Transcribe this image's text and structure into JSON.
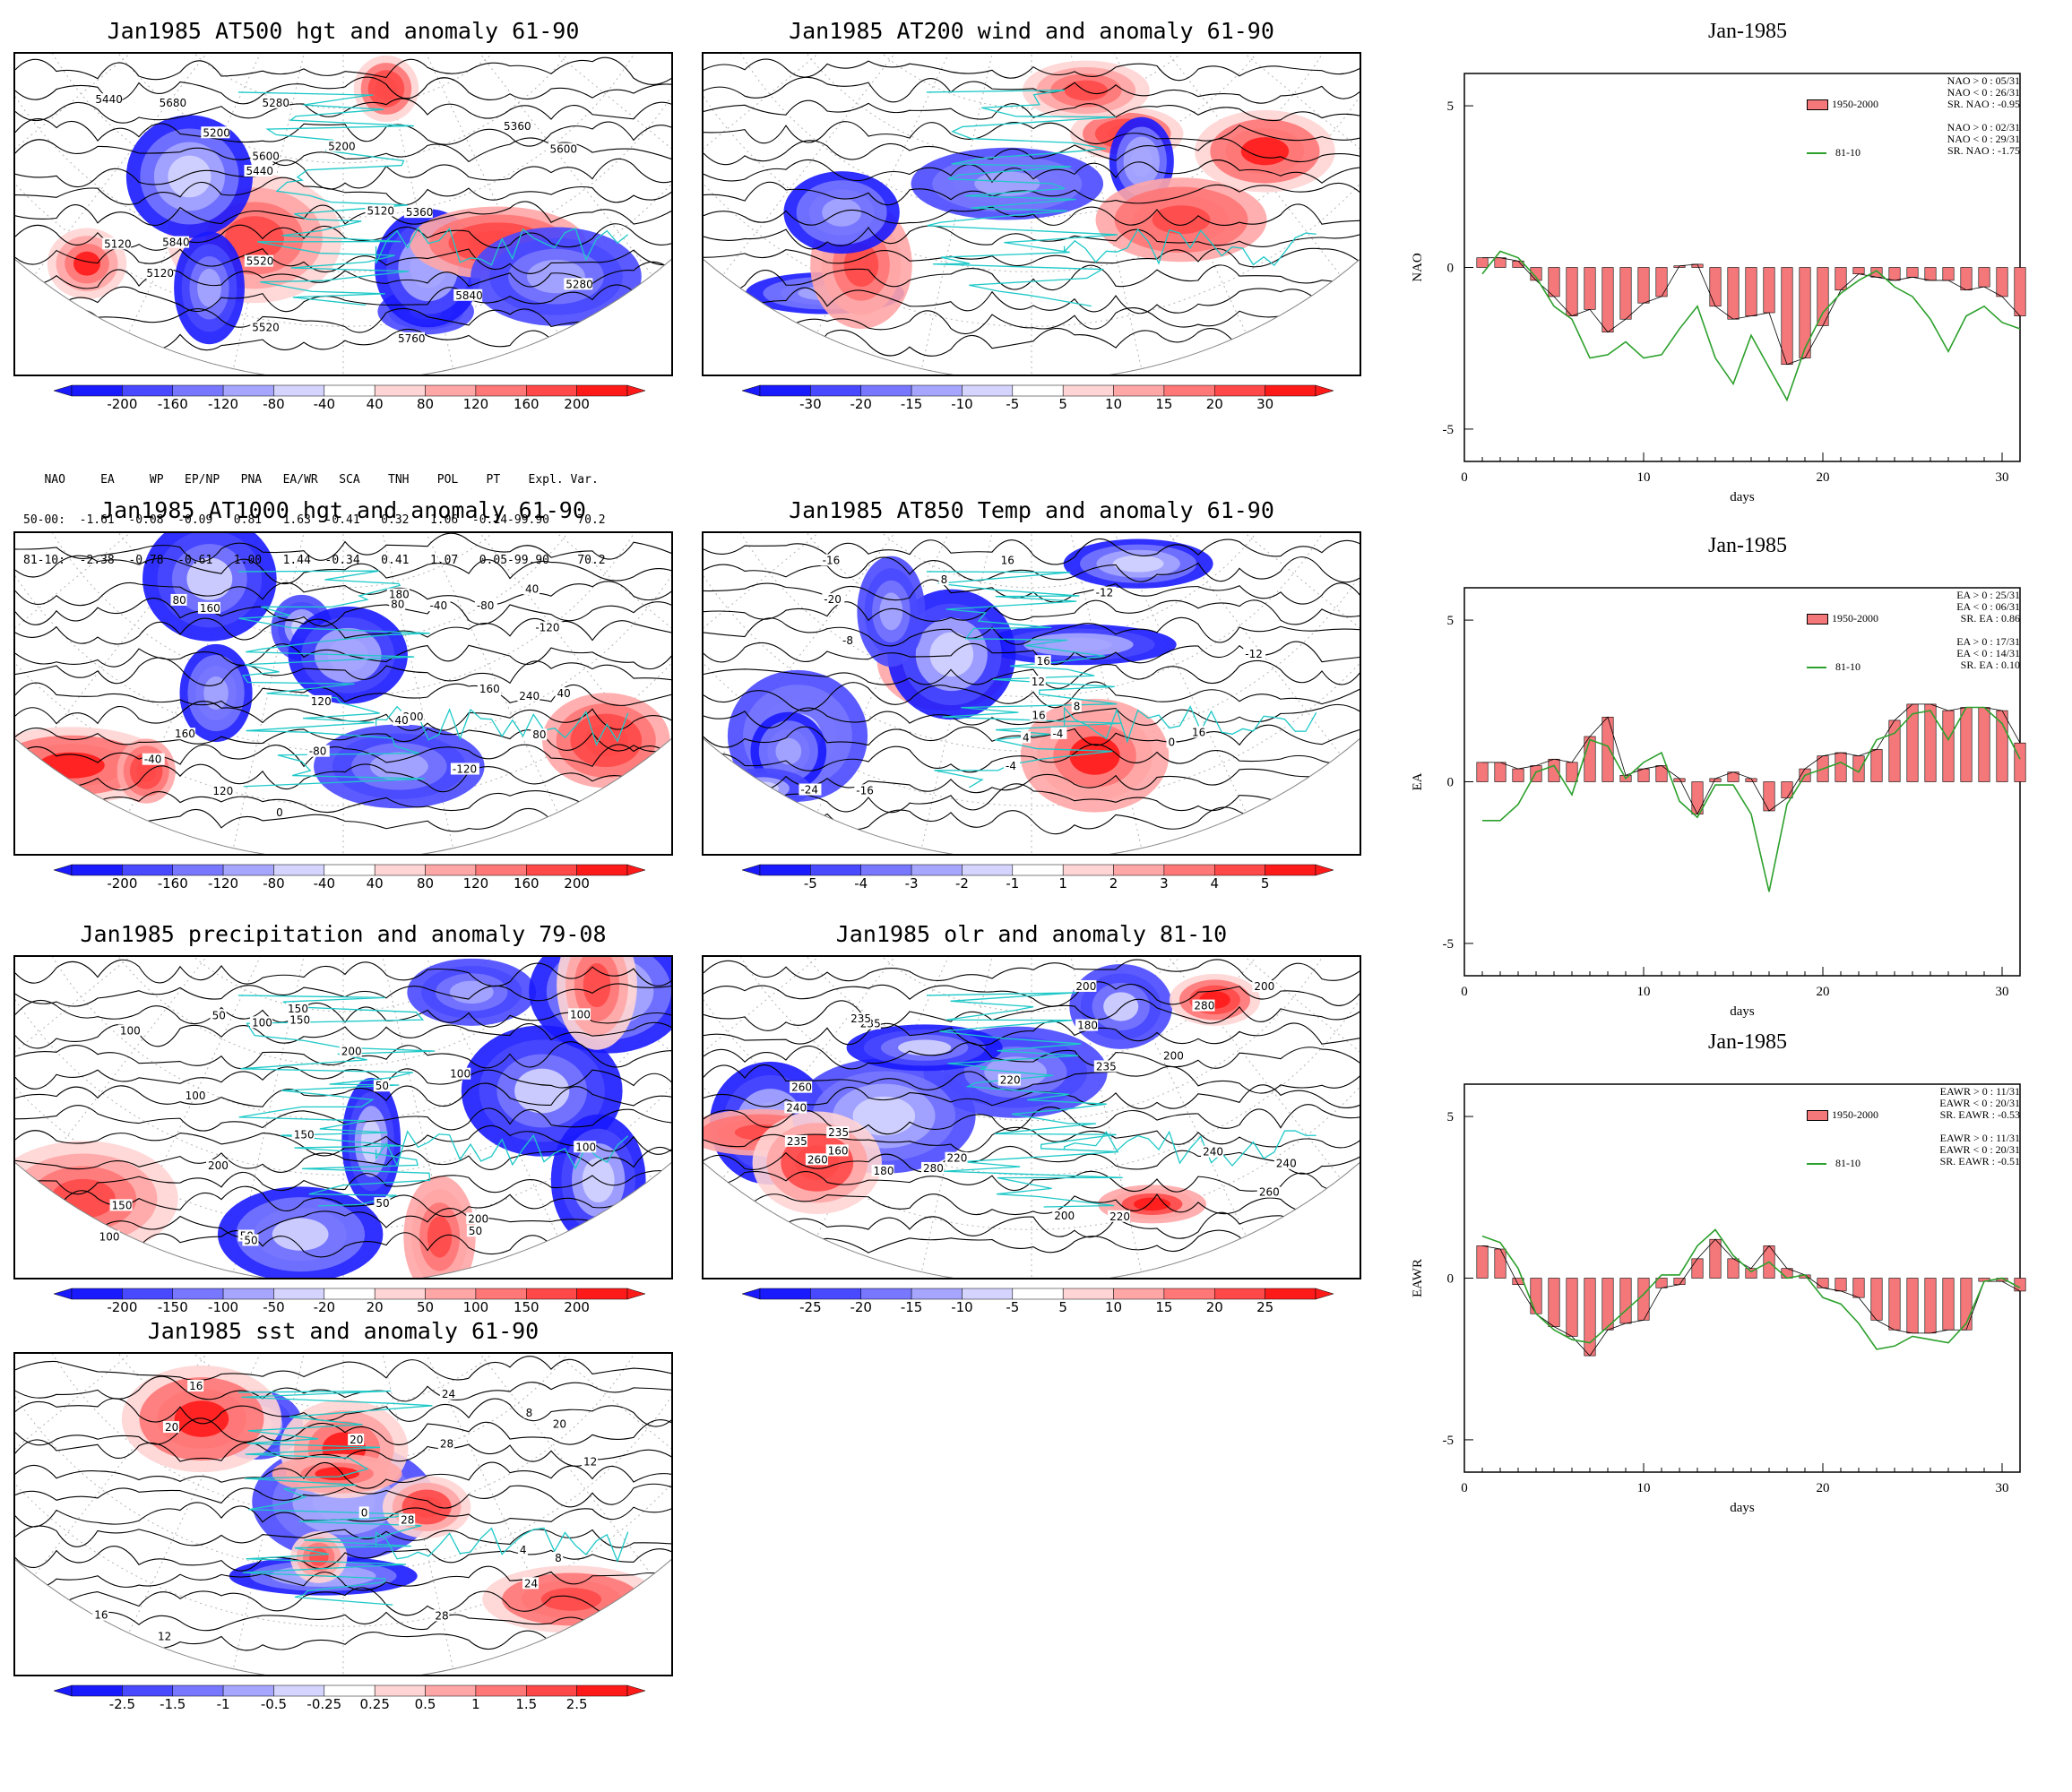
{
  "maps": [
    {
      "id": "z500",
      "title": "Jan1985 AT500 hgt and anomaly 61-90",
      "scale": [
        "-200",
        "-160",
        "-120",
        "-80",
        "-40",
        "40",
        "80",
        "120",
        "160",
        "200"
      ]
    },
    {
      "id": "u200",
      "title": "Jan1985 AT200 wind and anomaly 61-90",
      "scale": [
        "-30",
        "-20",
        "-15",
        "-10",
        "-5",
        "5",
        "10",
        "15",
        "20",
        "30"
      ]
    },
    {
      "id": "z1000",
      "title": "Jan1985 AT1000 hgt and anomaly 61-90",
      "scale": [
        "-200",
        "-160",
        "-120",
        "-80",
        "-40",
        "40",
        "80",
        "120",
        "160",
        "200"
      ]
    },
    {
      "id": "t850",
      "title": "Jan1985 AT850 Temp and anomaly 61-90",
      "scale": [
        "-5",
        "-4",
        "-3",
        "-2",
        "-1",
        "1",
        "2",
        "3",
        "4",
        "5"
      ]
    },
    {
      "id": "prcp",
      "title": "Jan1985 precipitation and anomaly 79-08",
      "scale": [
        "-200",
        "-150",
        "-100",
        "-50",
        "-20",
        "20",
        "50",
        "100",
        "150",
        "200"
      ]
    },
    {
      "id": "olr",
      "title": "Jan1985 olr and anomaly 81-10",
      "scale": [
        "-25",
        "-20",
        "-15",
        "-10",
        "-5",
        "5",
        "10",
        "15",
        "20",
        "25"
      ]
    },
    {
      "id": "sst",
      "title": "Jan1985 sst and anomaly 61-90",
      "scale": [
        "-2.5",
        "-1.5",
        "-1",
        "-0.5",
        "-0.25",
        "0.25",
        "0.5",
        "1",
        "1.5",
        "2.5"
      ]
    }
  ],
  "indices_table": {
    "header": "   NAO     EA     WP   EP/NP   PNA   EA/WR   SCA    TNH    POL    PT    Expl. Var.",
    "row1": "50-00:  -1.61  -0.08  -0.09   0.81   1.63  -0.41   0.32   1.06  -0.14-99.90    70.2",
    "row2": "81-10:  -2.38  -0.78  -0.61   1.00   1.44  -0.34   0.41   1.07   0.05-99.90    70.2"
  },
  "contour_labels": {
    "z500": [
      "5120",
      "5200",
      "5280",
      "5120",
      "5280",
      "5200",
      "5360",
      "5440",
      "5520",
      "5600",
      "5120",
      "5360",
      "5440",
      "5520",
      "5600",
      "5680",
      "5760",
      "5840",
      "5840"
    ],
    "z1000": [
      "-120",
      "-80",
      "-40",
      "0",
      "40",
      "160",
      "80",
      "200",
      "240",
      "40",
      "0",
      "40",
      "80",
      "120",
      "160",
      "180",
      "160",
      "-120",
      "120",
      "80",
      "-40",
      "-80"
    ],
    "t850": [
      "8",
      "-4",
      "-24",
      "-16",
      "-12",
      "-20",
      "-16",
      "-12",
      "-8",
      "-4",
      "0",
      "4",
      "8",
      "12",
      "16",
      "16",
      "16",
      "16"
    ],
    "prcp": [
      "200",
      "100",
      "150",
      "200",
      "150",
      "100",
      "50",
      "50",
      "150",
      "50",
      "100",
      "150",
      "100",
      "50",
      "200",
      "100",
      "100",
      "50",
      "50",
      "100"
    ],
    "olr": [
      "180",
      "160",
      "200",
      "240",
      "235",
      "280",
      "260",
      "200",
      "220",
      "235",
      "180",
      "200",
      "220",
      "235",
      "260",
      "280",
      "240",
      "235",
      "240",
      "235",
      "220",
      "200",
      "260"
    ],
    "sst": [
      "28",
      "8",
      "12",
      "16",
      "20",
      "24",
      "0",
      "4",
      "8",
      "12",
      "16",
      "20",
      "24",
      "28",
      "28",
      "20"
    ]
  },
  "timeseries_panels": [
    {
      "title": "Jan-1985",
      "ylabel": "NAO",
      "xlabel": "days",
      "legend_bar": "1950-2000",
      "legend_line": "81-10",
      "stats_bar": [
        "NAO > 0 : 05/31",
        "NAO < 0 : 26/31",
        "SR. NAO : -0.95"
      ],
      "stats_line": [
        "NAO > 0 : 02/31",
        "NAO < 0 : 29/31",
        "SR. NAO : -1.75"
      ]
    },
    {
      "title": "Jan-1985",
      "ylabel": "EA",
      "xlabel": "days",
      "legend_bar": "1950-2000",
      "legend_line": "81-10",
      "stats_bar": [
        "EA > 0 : 25/31",
        "EA < 0 : 06/31",
        "SR. EA :  0.86"
      ],
      "stats_line": [
        "EA > 0 : 17/31",
        "EA < 0 : 14/31",
        "SR. EA :  0.10"
      ]
    },
    {
      "title": "Jan-1985",
      "ylabel": "EAWR",
      "xlabel": "days",
      "legend_bar": "1950-2000",
      "legend_line": "81-10",
      "stats_bar": [
        "EAWR > 0 : 11/31",
        "EAWR < 0 : 20/31",
        "SR. EAWR : -0.53"
      ],
      "stats_line": [
        "EAWR > 0 : 11/31",
        "EAWR < 0 : 20/31",
        "SR. EAWR : -0.51"
      ]
    }
  ],
  "chart_data": [
    {
      "type": "bar",
      "title": "Jan-1985",
      "ylabel": "NAO",
      "xlabel": "days",
      "xlim": [
        0,
        31
      ],
      "ylim": [
        -6,
        6
      ],
      "xticks": [
        "0",
        "10",
        "20",
        "30"
      ],
      "yticks": [
        "5",
        "0",
        "-5"
      ],
      "x": [
        1,
        2,
        3,
        4,
        5,
        6,
        7,
        8,
        9,
        10,
        11,
        12,
        13,
        14,
        15,
        16,
        17,
        18,
        19,
        20,
        21,
        22,
        23,
        24,
        25,
        26,
        27,
        28,
        29,
        30,
        31
      ],
      "series": [
        {
          "name": "1950-2000",
          "kind": "bar",
          "color": "#f4787a",
          "values": [
            0.3,
            0.3,
            0.2,
            -0.4,
            -0.9,
            -1.5,
            -1.3,
            -2.0,
            -1.6,
            -1.1,
            -0.9,
            0.05,
            0.1,
            -1.2,
            -1.6,
            -1.5,
            -1.4,
            -3.0,
            -2.8,
            -1.8,
            -0.7,
            -0.2,
            -0.3,
            -0.4,
            -0.3,
            -0.4,
            -0.4,
            -0.7,
            -0.6,
            -0.9,
            -1.5
          ]
        },
        {
          "name": "81-10",
          "kind": "line",
          "color": "#2ca02c",
          "values": [
            -0.2,
            0.5,
            0.3,
            -0.3,
            -1.2,
            -1.6,
            -2.8,
            -2.7,
            -2.3,
            -2.8,
            -2.7,
            -1.9,
            -1.2,
            -2.8,
            -3.6,
            -2.1,
            -3.1,
            -4.1,
            -2.5,
            -1.4,
            -0.8,
            -0.4,
            -0.1,
            -0.6,
            -0.9,
            -1.6,
            -2.6,
            -1.5,
            -1.2,
            -1.7,
            -1.9
          ]
        }
      ]
    },
    {
      "type": "bar",
      "title": "Jan-1985",
      "ylabel": "EA",
      "xlabel": "days",
      "xlim": [
        0,
        31
      ],
      "ylim": [
        -6,
        6
      ],
      "xticks": [
        "0",
        "10",
        "20",
        "30"
      ],
      "yticks": [
        "5",
        "0",
        "-5"
      ],
      "x": [
        1,
        2,
        3,
        4,
        5,
        6,
        7,
        8,
        9,
        10,
        11,
        12,
        13,
        14,
        15,
        16,
        17,
        18,
        19,
        20,
        21,
        22,
        23,
        24,
        25,
        26,
        27,
        28,
        29,
        30,
        31
      ],
      "series": [
        {
          "name": "1950-2000",
          "kind": "bar",
          "color": "#f4787a",
          "values": [
            0.6,
            0.6,
            0.4,
            0.5,
            0.7,
            0.6,
            1.4,
            2.0,
            0.2,
            0.4,
            0.5,
            0.1,
            -1.0,
            0.1,
            0.3,
            0.1,
            -0.9,
            -0.5,
            0.4,
            0.8,
            0.9,
            0.8,
            1.0,
            1.9,
            2.4,
            2.4,
            2.2,
            2.3,
            2.3,
            2.2,
            1.2
          ]
        },
        {
          "name": "81-10",
          "kind": "line",
          "color": "#2ca02c",
          "values": [
            -1.2,
            -1.2,
            -0.7,
            0.3,
            0.5,
            -0.4,
            1.3,
            1.1,
            0.1,
            0.6,
            0.9,
            -0.6,
            -1.1,
            -0.1,
            -0.1,
            -1.0,
            -3.4,
            -0.7,
            0.2,
            0.4,
            0.6,
            0.3,
            1.3,
            1.5,
            2.1,
            2.2,
            1.3,
            2.3,
            2.3,
            1.8,
            0.7
          ]
        }
      ]
    },
    {
      "type": "bar",
      "title": "Jan-1985",
      "ylabel": "EAWR",
      "xlabel": "days",
      "xlim": [
        0,
        31
      ],
      "ylim": [
        -6,
        6
      ],
      "xticks": [
        "0",
        "10",
        "20",
        "30"
      ],
      "yticks": [
        "5",
        "0",
        "-5"
      ],
      "x": [
        1,
        2,
        3,
        4,
        5,
        6,
        7,
        8,
        9,
        10,
        11,
        12,
        13,
        14,
        15,
        16,
        17,
        18,
        19,
        20,
        21,
        22,
        23,
        24,
        25,
        26,
        27,
        28,
        29,
        30,
        31
      ],
      "series": [
        {
          "name": "1950-2000",
          "kind": "bar",
          "color": "#f4787a",
          "values": [
            1.0,
            0.9,
            -0.2,
            -1.1,
            -1.5,
            -1.8,
            -2.4,
            -1.6,
            -1.4,
            -1.3,
            -0.3,
            -0.2,
            0.6,
            1.2,
            0.6,
            0.3,
            1.0,
            0.3,
            0.1,
            -0.3,
            -0.4,
            -0.6,
            -1.3,
            -1.6,
            -1.7,
            -1.7,
            -1.6,
            -1.6,
            -0.1,
            -0.1,
            -0.4
          ]
        },
        {
          "name": "81-10",
          "kind": "line",
          "color": "#2ca02c",
          "values": [
            1.3,
            1.1,
            0.3,
            -1.1,
            -1.6,
            -1.9,
            -2.0,
            -1.5,
            -1.0,
            -0.5,
            0.1,
            0.1,
            1.0,
            1.5,
            0.7,
            0.2,
            0.5,
            0.0,
            0.1,
            -0.6,
            -0.8,
            -1.4,
            -2.2,
            -2.1,
            -1.8,
            -1.9,
            -2.0,
            -1.4,
            -0.1,
            0.0,
            -0.3
          ]
        }
      ]
    }
  ]
}
